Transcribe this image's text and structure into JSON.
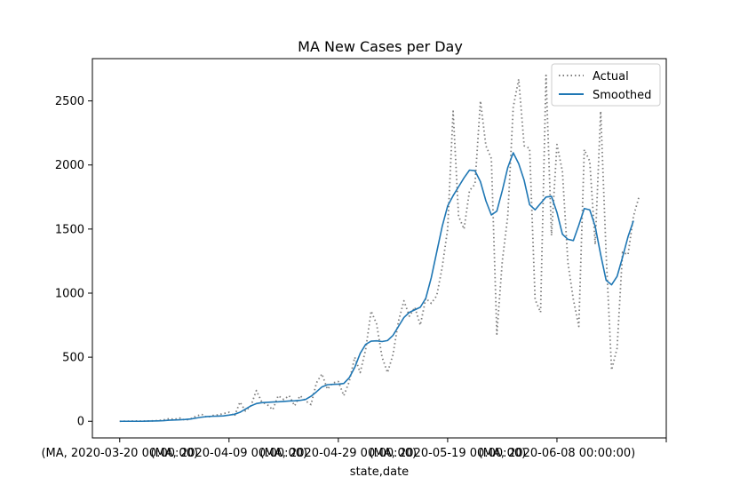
{
  "chart_data": {
    "type": "line",
    "title": "MA New Cases per Day",
    "xlabel": "state,date",
    "ylabel": "",
    "xlim": [
      -5,
      100
    ],
    "ylim": [
      -130,
      2830
    ],
    "yticks": [
      0,
      500,
      1000,
      1500,
      2000,
      2500
    ],
    "xticks": [
      {
        "x": 0,
        "label": "(MA, 2020-03-20 00:00:00)"
      },
      {
        "x": 20,
        "label": "(MA, 2020-04-09 00:00:00)"
      },
      {
        "x": 40,
        "label": "(MA, 2020-04-29 00:00:00)"
      },
      {
        "x": 60,
        "label": "(MA, 2020-05-19 00:00:00)"
      },
      {
        "x": 80,
        "label": "(MA, 2020-06-08 00:00:00)"
      },
      {
        "x": 100,
        "label": ""
      }
    ],
    "grid": false,
    "legend_position": "top-right",
    "series": [
      {
        "name": "Actual",
        "style": "dotted",
        "color": "#7f7f7f",
        "values": [
          0,
          1,
          1,
          2,
          1,
          2,
          3,
          5,
          10,
          20,
          15,
          25,
          8,
          20,
          40,
          55,
          30,
          45,
          50,
          60,
          70,
          40,
          150,
          80,
          120,
          240,
          150,
          130,
          90,
          200,
          170,
          200,
          120,
          200,
          160,
          130,
          300,
          370,
          250,
          300,
          310,
          200,
          310,
          500,
          380,
          560,
          860,
          760,
          500,
          380,
          520,
          780,
          940,
          820,
          890,
          750,
          960,
          920,
          980,
          1200,
          1500,
          2420,
          1600,
          1500,
          1800,
          1850,
          2500,
          2150,
          2050,
          680,
          1250,
          1600,
          2450,
          2670,
          2150,
          2130,
          950,
          850,
          2700,
          1450,
          2160,
          1950,
          1240,
          950,
          740,
          2120,
          2030,
          1380,
          2420,
          1300,
          400,
          570,
          1320,
          1300,
          1600,
          1750
        ]
      },
      {
        "name": "Smoothed",
        "style": "solid",
        "color": "#1f77b4",
        "values": [
          0,
          0,
          0,
          0,
          0,
          1,
          2,
          3,
          5,
          8,
          10,
          12,
          14,
          18,
          25,
          32,
          37,
          39,
          40,
          42,
          48,
          55,
          70,
          95,
          120,
          138,
          145,
          148,
          150,
          152,
          155,
          158,
          160,
          163,
          170,
          195,
          230,
          268,
          285,
          288,
          290,
          295,
          340,
          420,
          530,
          600,
          625,
          628,
          622,
          630,
          670,
          740,
          810,
          850,
          870,
          890,
          960,
          1120,
          1320,
          1520,
          1680,
          1760,
          1830,
          1900,
          1960,
          1955,
          1870,
          1720,
          1610,
          1640,
          1800,
          1980,
          2095,
          2010,
          1880,
          1690,
          1650,
          1700,
          1750,
          1755,
          1630,
          1460,
          1420,
          1410,
          1530,
          1660,
          1650,
          1520,
          1300,
          1100,
          1065,
          1130,
          1280,
          1440,
          1565
        ]
      }
    ]
  }
}
